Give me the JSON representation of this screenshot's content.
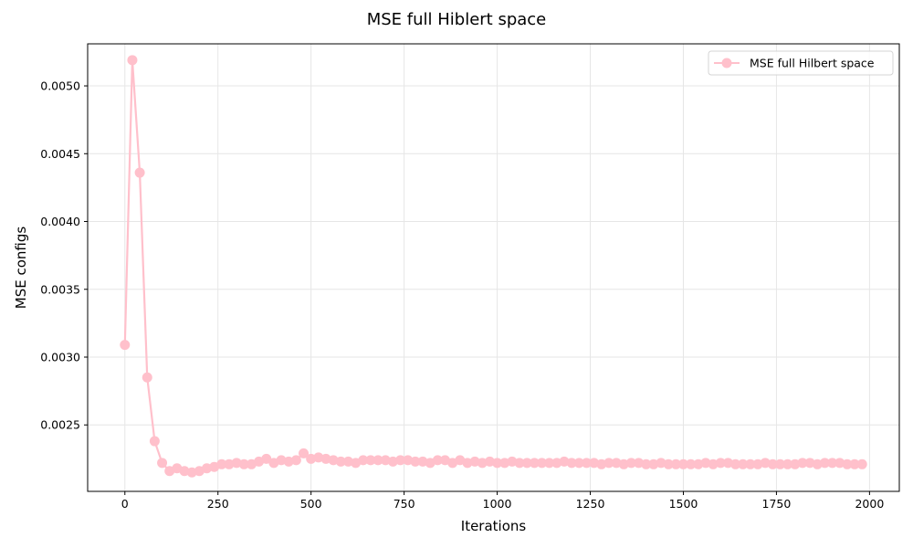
{
  "chart_data": {
    "type": "line",
    "title": "MSE full Hiblert space",
    "xlabel": "Iterations",
    "ylabel": "MSE configs",
    "xlim": [
      -100,
      2080
    ],
    "ylim": [
      0.00201,
      0.00531
    ],
    "xticks": [
      0,
      250,
      500,
      750,
      1000,
      1250,
      1500,
      1750,
      2000
    ],
    "yticks": [
      0.0025,
      0.003,
      0.0035,
      0.004,
      0.0045,
      0.005
    ],
    "ytick_labels": [
      "0.0025",
      "0.0030",
      "0.0035",
      "0.0040",
      "0.0045",
      "0.0050"
    ],
    "grid": true,
    "legend_position": "top-right",
    "series": [
      {
        "name": "MSE full Hilbert space",
        "color": "#ffc0cb",
        "marker": "circle",
        "x": [
          0,
          20,
          40,
          60,
          80,
          100,
          120,
          140,
          160,
          180,
          200,
          220,
          240,
          260,
          280,
          300,
          320,
          340,
          360,
          380,
          400,
          420,
          440,
          460,
          480,
          500,
          520,
          540,
          560,
          580,
          600,
          620,
          640,
          660,
          680,
          700,
          720,
          740,
          760,
          780,
          800,
          820,
          840,
          860,
          880,
          900,
          920,
          940,
          960,
          980,
          1000,
          1020,
          1040,
          1060,
          1080,
          1100,
          1120,
          1140,
          1160,
          1180,
          1200,
          1220,
          1240,
          1260,
          1280,
          1300,
          1320,
          1340,
          1360,
          1380,
          1400,
          1420,
          1440,
          1460,
          1480,
          1500,
          1520,
          1540,
          1560,
          1580,
          1600,
          1620,
          1640,
          1660,
          1680,
          1700,
          1720,
          1740,
          1760,
          1780,
          1800,
          1820,
          1840,
          1860,
          1880,
          1900,
          1920,
          1940,
          1960,
          1980
        ],
        "values": [
          0.00309,
          0.00519,
          0.00436,
          0.00285,
          0.00238,
          0.00222,
          0.00216,
          0.00218,
          0.00216,
          0.00215,
          0.00216,
          0.00218,
          0.00219,
          0.00221,
          0.00221,
          0.00222,
          0.00221,
          0.00221,
          0.00223,
          0.00225,
          0.00222,
          0.00224,
          0.00223,
          0.00224,
          0.00229,
          0.00225,
          0.00226,
          0.00225,
          0.00224,
          0.00223,
          0.00223,
          0.00222,
          0.00224,
          0.00224,
          0.00224,
          0.00224,
          0.00223,
          0.00224,
          0.00224,
          0.00223,
          0.00223,
          0.00222,
          0.00224,
          0.00224,
          0.00222,
          0.00224,
          0.00222,
          0.00223,
          0.00222,
          0.00223,
          0.00222,
          0.00222,
          0.00223,
          0.00222,
          0.00222,
          0.00222,
          0.00222,
          0.00222,
          0.00222,
          0.00223,
          0.00222,
          0.00222,
          0.00222,
          0.00222,
          0.00221,
          0.00222,
          0.00222,
          0.00221,
          0.00222,
          0.00222,
          0.00221,
          0.00221,
          0.00222,
          0.00221,
          0.00221,
          0.00221,
          0.00221,
          0.00221,
          0.00222,
          0.00221,
          0.00222,
          0.00222,
          0.00221,
          0.00221,
          0.00221,
          0.00221,
          0.00222,
          0.00221,
          0.00221,
          0.00221,
          0.00221,
          0.00222,
          0.00222,
          0.00221,
          0.00222,
          0.00222,
          0.00222,
          0.00221,
          0.00221,
          0.00221
        ]
      }
    ]
  }
}
